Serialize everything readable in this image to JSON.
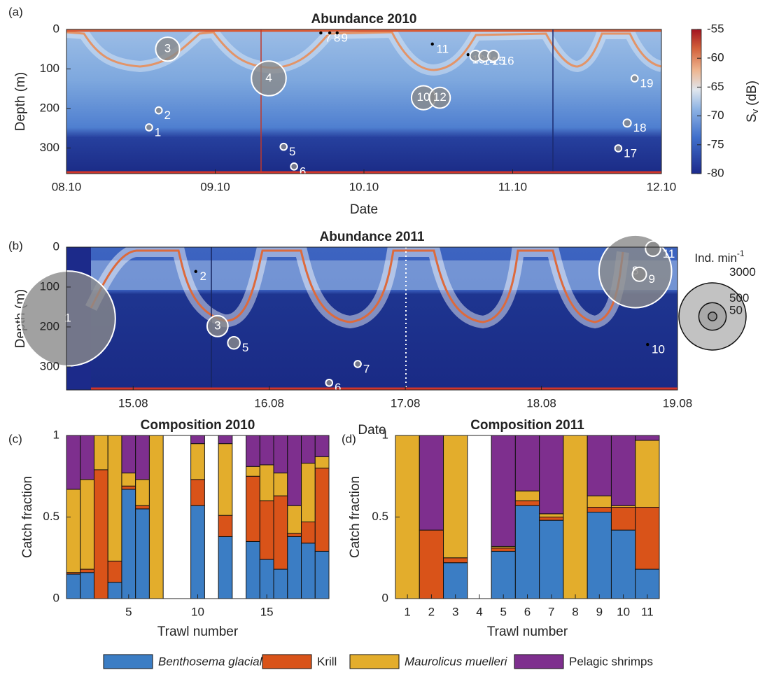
{
  "chart_data": [
    {
      "type": "scatter",
      "panel_label": "(a)",
      "title": "Abundance 2010",
      "xlabel": "Date",
      "ylabel": "Depth (m)",
      "x": [
        8.555,
        8.62,
        8.68,
        9.36,
        9.46,
        9.53,
        9.71,
        9.77,
        9.82,
        10.4,
        10.46,
        10.51,
        10.7,
        10.75,
        10.81,
        10.87,
        11.71,
        11.77,
        11.82
      ],
      "y": [
        248,
        205,
        50,
        124,
        297,
        347,
        9,
        9,
        9,
        173,
        37,
        173,
        64,
        67,
        67,
        67,
        301,
        237,
        124
      ],
      "sizes": [
        30,
        30,
        380,
        800,
        30,
        30,
        10,
        10,
        10,
        380,
        10,
        290,
        10,
        80,
        80,
        80,
        30,
        40,
        30
      ],
      "labels": [
        "1",
        "2",
        "3",
        "4",
        "5",
        "6",
        "7",
        "8",
        "9",
        "10",
        "11",
        "12",
        "13",
        "14",
        "15",
        "16",
        "17",
        "18",
        "19"
      ],
      "xlim": [
        8,
        12
      ],
      "xticks": [
        {
          "value": 8,
          "label": "08.10"
        },
        {
          "value": 9,
          "label": "09.10"
        },
        {
          "value": 10,
          "label": "10.10"
        },
        {
          "value": 11,
          "label": "11.10"
        },
        {
          "value": 12,
          "label": "12.10"
        }
      ],
      "ylim": [
        365,
        0
      ],
      "yticks": [
        0,
        100,
        200,
        300
      ],
      "colorbar": {
        "lim": [
          -80,
          -55
        ],
        "ticks": [
          -80,
          -75,
          -70,
          -65,
          -60,
          -55
        ],
        "label": "S",
        "label_sub": "v",
        "label_unit": "(dB)"
      }
    },
    {
      "type": "scatter",
      "panel_label": "(b)",
      "title": "Abundance 2011",
      "xlabel": "Date",
      "ylabel": "Depth (m)",
      "x": [
        14.52,
        15.46,
        15.62,
        15.74,
        16.44,
        16.65,
        18.69,
        18.72,
        18.78,
        18.82
      ],
      "y": [
        179,
        61,
        198,
        240,
        340,
        293,
        61,
        68,
        244,
        4
      ],
      "sizes": [
        6000,
        10,
        290,
        100,
        30,
        30,
        3500,
        130,
        10,
        150
      ],
      "labels": [
        "1",
        "2",
        "3",
        "5",
        "6",
        "7",
        "8",
        "9",
        "10",
        "11"
      ],
      "xlim": [
        14.51,
        19
      ],
      "xticks": [
        {
          "value": 15,
          "label": "15.08"
        },
        {
          "value": 16,
          "label": "16.08"
        },
        {
          "value": 17,
          "label": "17.08"
        },
        {
          "value": 18,
          "label": "18.08"
        },
        {
          "value": 19,
          "label": "19.08"
        }
      ],
      "ylim": [
        358,
        0
      ],
      "yticks": [
        0,
        100,
        200,
        300
      ],
      "size_legend": {
        "title": "Ind. min",
        "title_sup": "-1",
        "values": [
          3000,
          500,
          50
        ]
      }
    },
    {
      "type": "bar",
      "panel_label": "(c)",
      "title": "Composition 2010",
      "xlabel": "Trawl number",
      "ylabel": "Catch fraction",
      "x": [
        1,
        2,
        3,
        4,
        5,
        6,
        7,
        8,
        9,
        10,
        11,
        12,
        13,
        14,
        15,
        16,
        17,
        18,
        19
      ],
      "xlim": [
        0.5,
        19.5
      ],
      "xticks": [
        5,
        10,
        15
      ],
      "ylim": [
        0,
        1
      ],
      "yticks": [
        0,
        0.5,
        1
      ],
      "series": [
        {
          "name": "Benthosema glaciale",
          "italic": true,
          "color": "#3b7dc4",
          "values": [
            0.15,
            0.16,
            0,
            0.1,
            0.67,
            0.55,
            0,
            0,
            0,
            0.57,
            0,
            0.38,
            0,
            0.35,
            0.24,
            0.18,
            0.38,
            0.34,
            0.29
          ]
        },
        {
          "name": "Krill",
          "italic": false,
          "color": "#d95319",
          "values": [
            0.01,
            0.02,
            0.79,
            0.13,
            0.02,
            0.02,
            0,
            0,
            0,
            0.16,
            0,
            0.13,
            0,
            0.4,
            0.36,
            0.45,
            0.02,
            0.13,
            0.51
          ]
        },
        {
          "name": "Maurolicus muelleri",
          "italic": true,
          "color": "#e3ad2c",
          "values": [
            0.51,
            0.55,
            0.21,
            0.77,
            0.08,
            0.16,
            1,
            0,
            0,
            0.22,
            0,
            0.44,
            0,
            0.06,
            0.22,
            0.14,
            0.17,
            0.36,
            0.07
          ]
        },
        {
          "name": "Pelagic shrimps",
          "italic": false,
          "color": "#7e2f8e",
          "values": [
            0.33,
            0.27,
            0,
            0,
            0.23,
            0.27,
            0,
            0,
            0,
            0.05,
            0,
            0.05,
            0,
            0.19,
            0.18,
            0.23,
            0.43,
            0.17,
            0.13
          ]
        }
      ]
    },
    {
      "type": "bar",
      "panel_label": "(d)",
      "title": "Composition 2011",
      "xlabel": "Trawl number",
      "ylabel": "Catch fraction",
      "x": [
        1,
        2,
        3,
        4,
        5,
        6,
        7,
        8,
        9,
        10,
        11
      ],
      "xlim": [
        0.5,
        11.5
      ],
      "xticks": [
        1,
        2,
        3,
        4,
        5,
        6,
        7,
        8,
        9,
        10,
        11
      ],
      "ylim": [
        0,
        1
      ],
      "yticks": [
        0,
        0.5,
        1
      ],
      "series": [
        {
          "values": [
            0,
            0,
            0.22,
            0,
            0.29,
            0.57,
            0.48,
            0,
            0.53,
            0.42,
            0.18
          ]
        },
        {
          "values": [
            0,
            0.42,
            0.03,
            0,
            0.02,
            0.03,
            0.02,
            0,
            0.03,
            0.14,
            0.38
          ]
        },
        {
          "values": [
            1,
            0,
            0.75,
            0,
            0.01,
            0.06,
            0.02,
            1,
            0.07,
            0.01,
            0.41
          ]
        },
        {
          "values": [
            0,
            0.58,
            0,
            0,
            0.68,
            0.34,
            0.48,
            0,
            0.37,
            0.43,
            0.03
          ]
        }
      ]
    }
  ]
}
